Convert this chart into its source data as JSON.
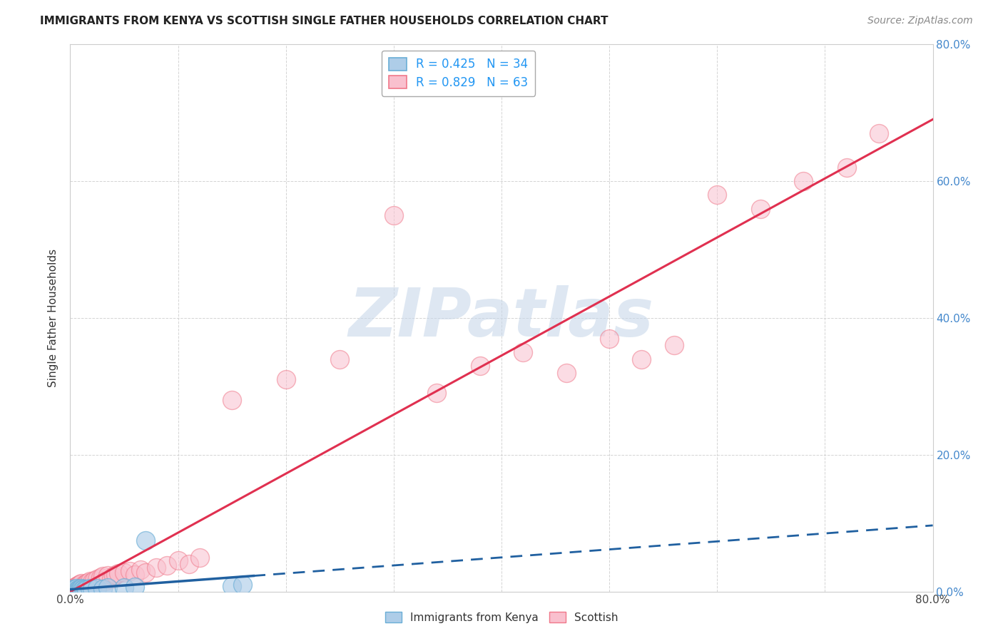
{
  "title": "IMMIGRANTS FROM KENYA VS SCOTTISH SINGLE FATHER HOUSEHOLDS CORRELATION CHART",
  "source": "Source: ZipAtlas.com",
  "ylabel": "Single Father Households",
  "xlim": [
    0.0,
    0.8
  ],
  "ylim": [
    0.0,
    0.8
  ],
  "xtick_vals": [
    0.0,
    0.1,
    0.2,
    0.3,
    0.4,
    0.5,
    0.6,
    0.7,
    0.8
  ],
  "ytick_vals": [
    0.0,
    0.2,
    0.4,
    0.6,
    0.8
  ],
  "blue_scatter_x": [
    0.001,
    0.002,
    0.002,
    0.003,
    0.003,
    0.004,
    0.004,
    0.005,
    0.005,
    0.006,
    0.006,
    0.007,
    0.007,
    0.008,
    0.008,
    0.009,
    0.009,
    0.01,
    0.01,
    0.011,
    0.012,
    0.013,
    0.014,
    0.015,
    0.018,
    0.02,
    0.025,
    0.03,
    0.035,
    0.05,
    0.06,
    0.07,
    0.15,
    0.16
  ],
  "blue_scatter_y": [
    0.001,
    0.002,
    0.003,
    0.001,
    0.004,
    0.002,
    0.003,
    0.001,
    0.004,
    0.002,
    0.005,
    0.001,
    0.003,
    0.002,
    0.004,
    0.001,
    0.003,
    0.002,
    0.005,
    0.003,
    0.004,
    0.002,
    0.004,
    0.003,
    0.005,
    0.004,
    0.005,
    0.004,
    0.006,
    0.006,
    0.007,
    0.075,
    0.008,
    0.01
  ],
  "pink_scatter_x": [
    0.001,
    0.001,
    0.002,
    0.002,
    0.003,
    0.003,
    0.004,
    0.004,
    0.005,
    0.005,
    0.006,
    0.006,
    0.007,
    0.007,
    0.008,
    0.008,
    0.009,
    0.009,
    0.01,
    0.01,
    0.011,
    0.012,
    0.013,
    0.015,
    0.016,
    0.018,
    0.02,
    0.022,
    0.025,
    0.028,
    0.03,
    0.032,
    0.035,
    0.038,
    0.04,
    0.042,
    0.045,
    0.05,
    0.055,
    0.06,
    0.065,
    0.07,
    0.08,
    0.09,
    0.1,
    0.11,
    0.12,
    0.15,
    0.2,
    0.25,
    0.3,
    0.34,
    0.38,
    0.42,
    0.46,
    0.5,
    0.53,
    0.56,
    0.6,
    0.64,
    0.68,
    0.72,
    0.75
  ],
  "pink_scatter_y": [
    0.001,
    0.003,
    0.002,
    0.004,
    0.001,
    0.005,
    0.002,
    0.006,
    0.003,
    0.007,
    0.002,
    0.008,
    0.003,
    0.009,
    0.004,
    0.01,
    0.003,
    0.011,
    0.004,
    0.012,
    0.005,
    0.008,
    0.01,
    0.012,
    0.013,
    0.015,
    0.014,
    0.016,
    0.018,
    0.02,
    0.022,
    0.015,
    0.024,
    0.018,
    0.022,
    0.025,
    0.027,
    0.028,
    0.03,
    0.025,
    0.032,
    0.028,
    0.035,
    0.038,
    0.045,
    0.04,
    0.05,
    0.28,
    0.31,
    0.34,
    0.55,
    0.29,
    0.33,
    0.35,
    0.32,
    0.37,
    0.34,
    0.36,
    0.58,
    0.56,
    0.6,
    0.62,
    0.67
  ],
  "blue_color_face": "#aecde8",
  "blue_color_edge": "#6aaed6",
  "pink_color_face": "#f9c0ce",
  "pink_color_edge": "#f0788a",
  "blue_line_color": "#2060a0",
  "pink_line_color": "#e03050",
  "watermark_color": "#c8d8ea",
  "title_fontsize": 11,
  "source_fontsize": 10,
  "legend_fontsize": 12,
  "tick_fontsize": 11,
  "ylabel_fontsize": 11
}
